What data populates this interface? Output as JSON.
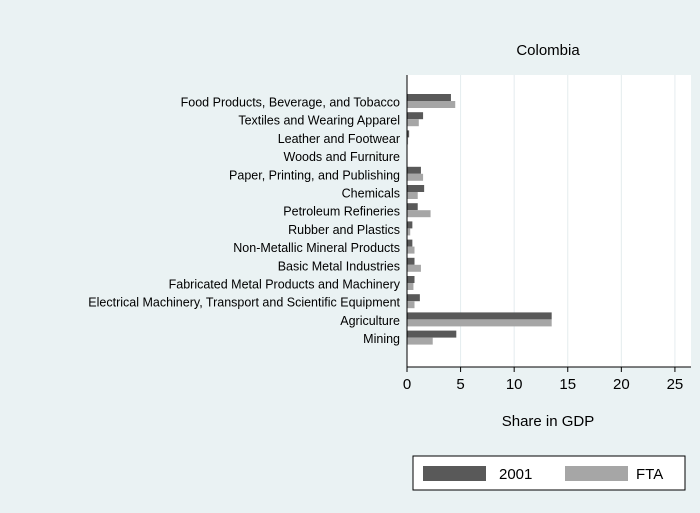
{
  "chart_data": {
    "type": "bar",
    "orientation": "horizontal",
    "title": "Colombia",
    "xlabel": "Share in GDP",
    "ylabel": "",
    "xlim": [
      0,
      26.5
    ],
    "xticks": [
      0,
      5,
      10,
      15,
      20,
      25
    ],
    "grid": true,
    "legend_position": "bottom-right",
    "categories": [
      "Food Products, Beverage, and Tobacco",
      "Textiles and Wearing Apparel",
      "Leather and Footwear",
      "Woods and Furniture",
      "Paper, Printing, and Publishing",
      "Chemicals",
      "Petroleum Refineries",
      "Rubber and Plastics",
      "Non-Metallic Mineral Products",
      "Basic Metal Industries",
      "Fabricated Metal Products and Machinery",
      "Electrical Machinery, Transport and Scientific Equipment",
      "Agriculture",
      "Mining"
    ],
    "series": [
      {
        "name": "2001",
        "color": "#595959",
        "values": [
          4.1,
          1.5,
          0.2,
          0.0,
          1.3,
          1.6,
          1.0,
          0.5,
          0.5,
          0.7,
          0.7,
          1.2,
          13.5,
          4.6
        ]
      },
      {
        "name": "FTA",
        "color": "#a6a6a6",
        "values": [
          4.5,
          1.1,
          0.1,
          0.0,
          1.5,
          1.0,
          2.2,
          0.3,
          0.7,
          1.3,
          0.6,
          0.7,
          13.5,
          2.4
        ]
      }
    ]
  }
}
